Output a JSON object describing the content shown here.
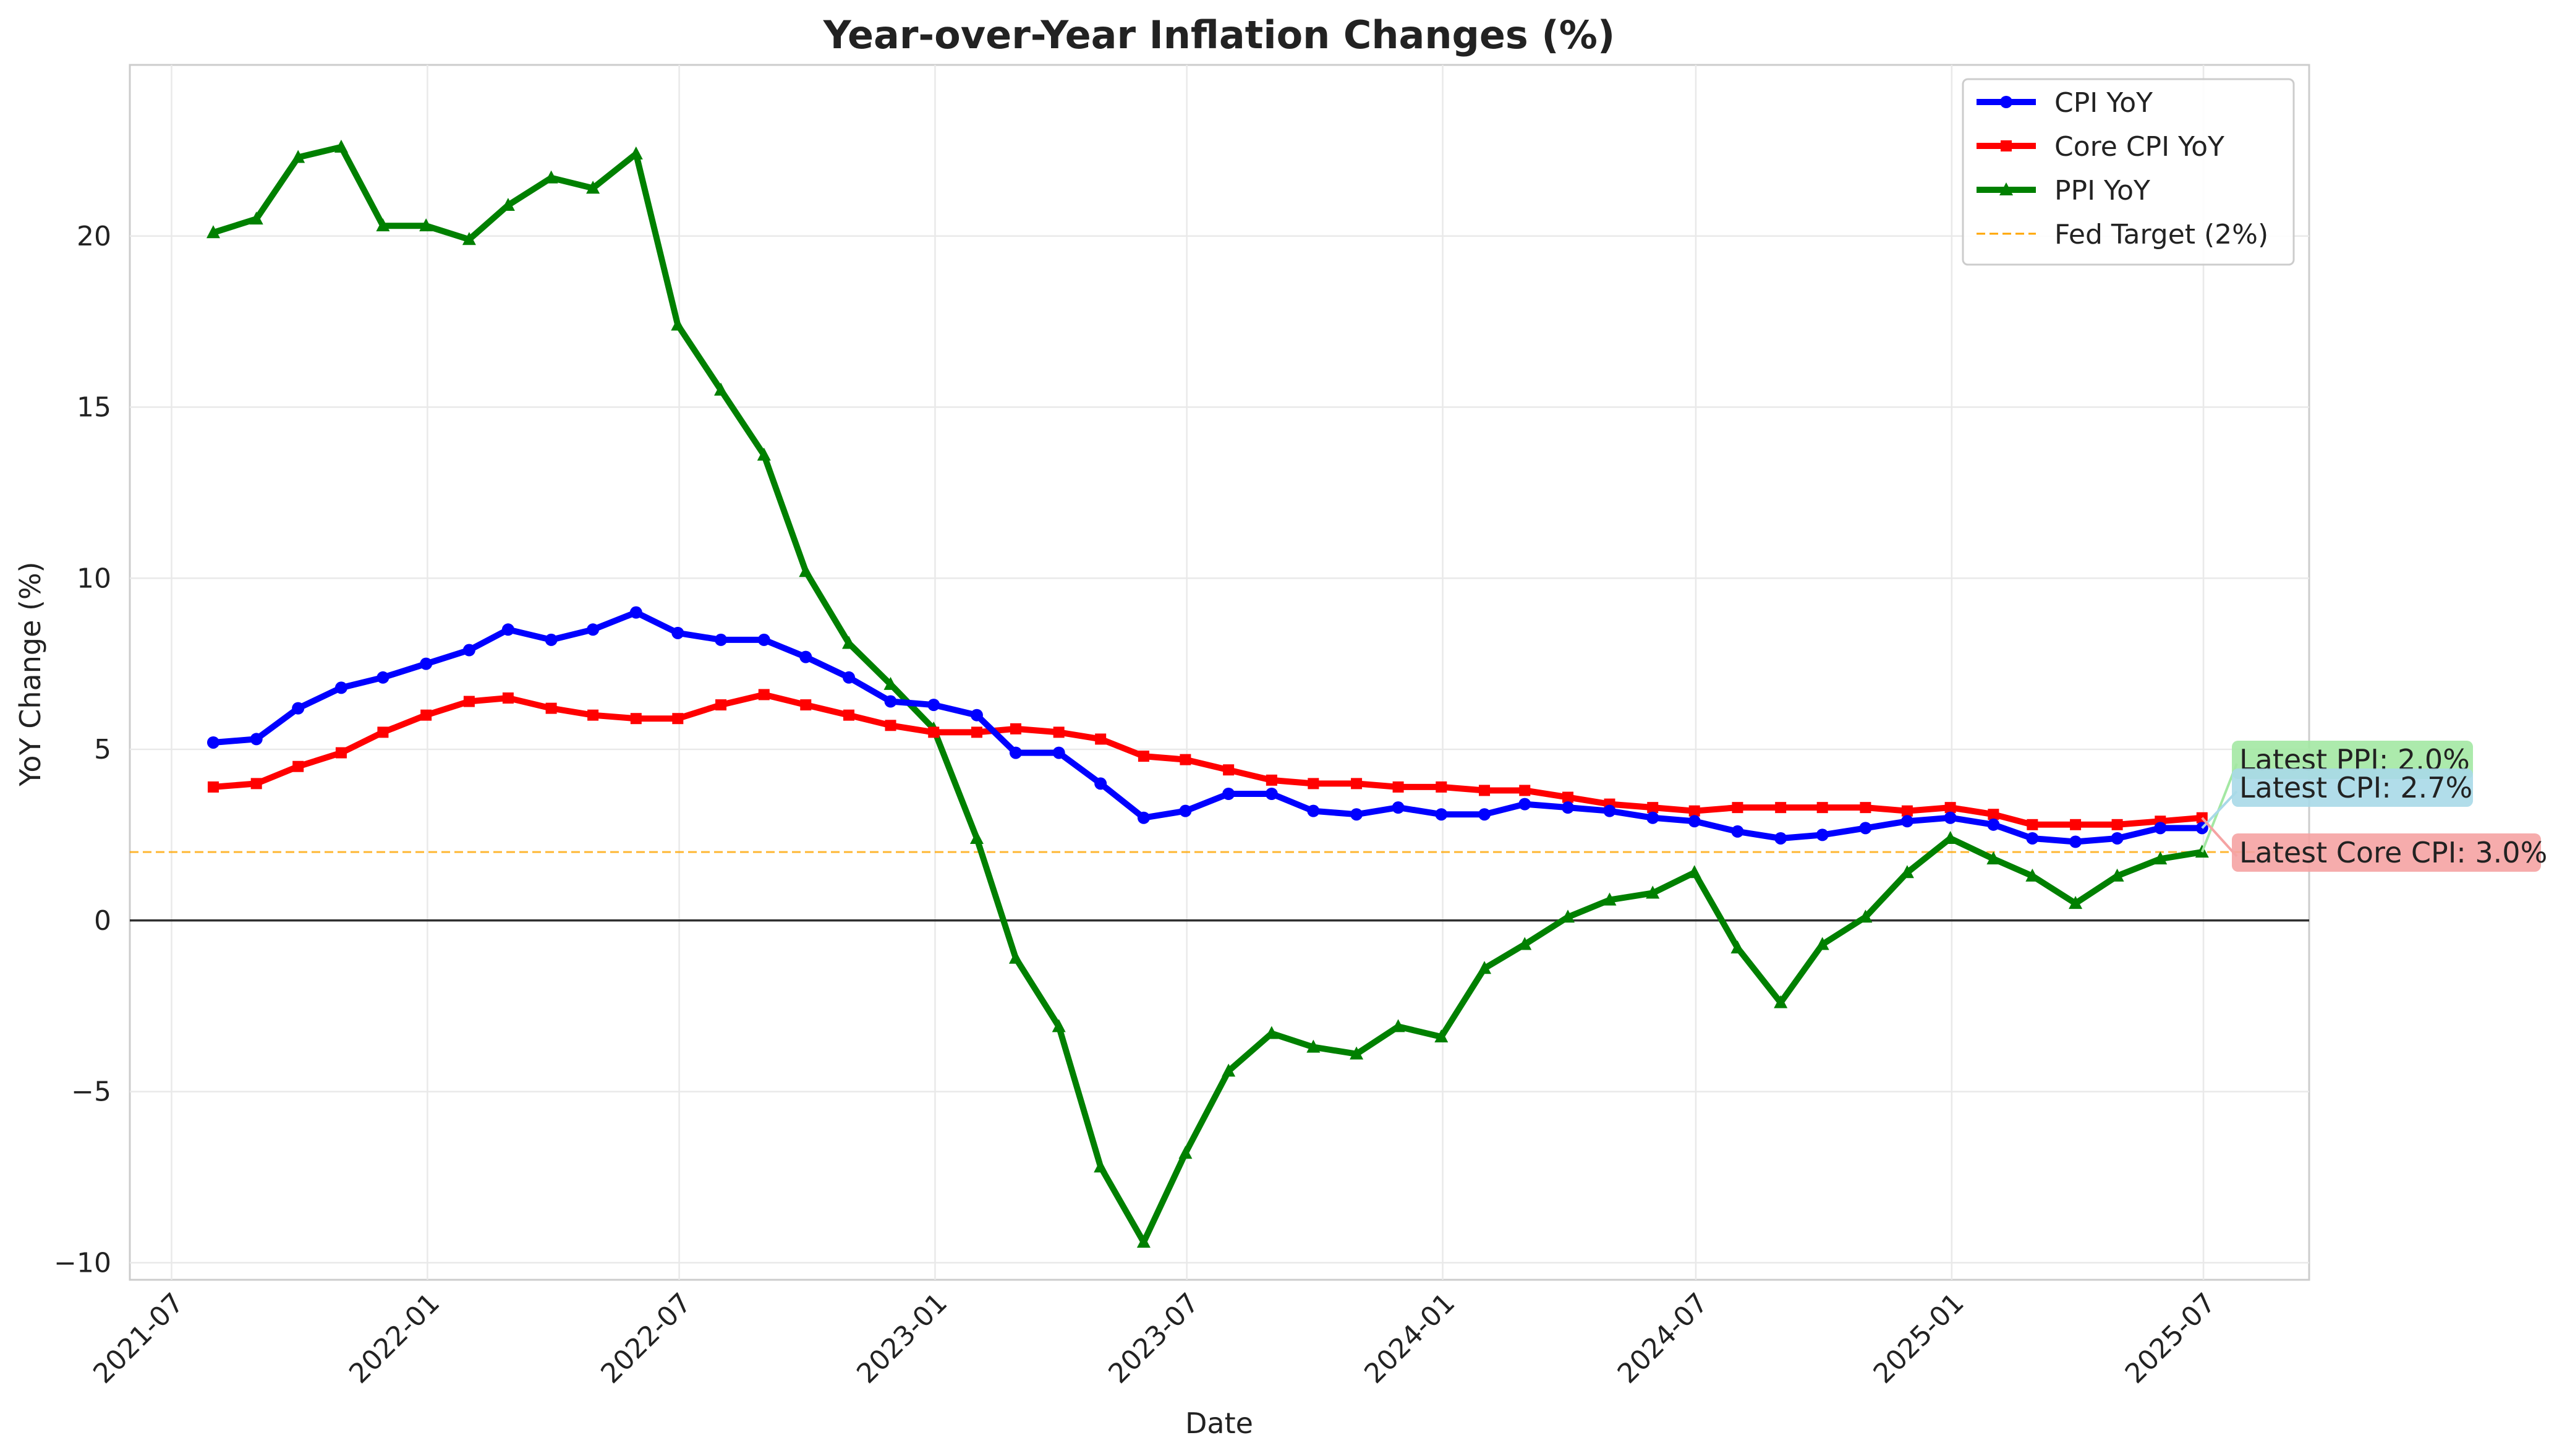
{
  "chart_data": {
    "type": "line",
    "title": "Year-over-Year Inflation Changes (%)",
    "xlabel": "Date",
    "ylabel": "YoY Change (%)",
    "ylim": [
      -10.5,
      25
    ],
    "yticks": [
      -10,
      -5,
      0,
      5,
      10,
      15,
      20
    ],
    "ytick_labels": [
      "−10",
      "−5",
      "0",
      "5",
      "10",
      "15",
      "20"
    ],
    "xlim": [
      "2021-06-01",
      "2025-09-15"
    ],
    "xticks": [
      "2021-07-01",
      "2022-01-01",
      "2022-07-01",
      "2023-01-01",
      "2023-07-01",
      "2024-01-01",
      "2024-07-01",
      "2025-01-01",
      "2025-07-01"
    ],
    "xtick_labels": [
      "2021-07",
      "2022-01",
      "2022-07",
      "2023-01",
      "2023-07",
      "2024-01",
      "2024-07",
      "2025-01",
      "2025-07"
    ],
    "grid": true,
    "legend_position": "top-right",
    "x": [
      "2021-07-31",
      "2021-08-31",
      "2021-09-30",
      "2021-10-31",
      "2021-11-30",
      "2021-12-31",
      "2022-01-31",
      "2022-02-28",
      "2022-03-31",
      "2022-04-30",
      "2022-05-31",
      "2022-06-30",
      "2022-07-31",
      "2022-08-31",
      "2022-09-30",
      "2022-10-31",
      "2022-11-30",
      "2022-12-31",
      "2023-01-31",
      "2023-02-28",
      "2023-03-31",
      "2023-04-30",
      "2023-05-31",
      "2023-06-30",
      "2023-07-31",
      "2023-08-31",
      "2023-09-30",
      "2023-10-31",
      "2023-11-30",
      "2023-12-31",
      "2024-01-31",
      "2024-02-29",
      "2024-03-31",
      "2024-04-30",
      "2024-05-31",
      "2024-06-30",
      "2024-07-31",
      "2024-08-31",
      "2024-09-30",
      "2024-10-31",
      "2024-11-30",
      "2024-12-31",
      "2025-01-31",
      "2025-02-28",
      "2025-03-31",
      "2025-04-30",
      "2025-05-31",
      "2025-06-30"
    ],
    "series": [
      {
        "name": "CPI YoY",
        "color": "#0000ff",
        "marker": "circle",
        "values": [
          5.2,
          5.3,
          6.2,
          6.8,
          7.1,
          7.5,
          7.9,
          8.5,
          8.2,
          8.5,
          9.0,
          8.4,
          8.2,
          8.2,
          7.7,
          7.1,
          6.4,
          6.3,
          6.0,
          4.9,
          4.9,
          4.0,
          3.0,
          3.2,
          3.7,
          3.7,
          3.2,
          3.1,
          3.3,
          3.1,
          3.1,
          3.4,
          3.3,
          3.2,
          3.0,
          2.9,
          2.6,
          2.4,
          2.5,
          2.7,
          2.9,
          3.0,
          2.8,
          2.4,
          2.3,
          2.4,
          2.7,
          2.7
        ]
      },
      {
        "name": "Core CPI YoY",
        "color": "#ff0000",
        "marker": "square",
        "values": [
          3.9,
          4.0,
          4.5,
          4.9,
          5.5,
          6.0,
          6.4,
          6.5,
          6.2,
          6.0,
          5.9,
          5.9,
          6.3,
          6.6,
          6.3,
          6.0,
          5.7,
          5.5,
          5.5,
          5.6,
          5.5,
          5.3,
          4.8,
          4.7,
          4.4,
          4.1,
          4.0,
          4.0,
          3.9,
          3.9,
          3.8,
          3.8,
          3.6,
          3.4,
          3.3,
          3.2,
          3.3,
          3.3,
          3.3,
          3.3,
          3.2,
          3.3,
          3.1,
          2.8,
          2.8,
          2.8,
          2.9,
          3.0
        ]
      },
      {
        "name": "PPI YoY",
        "color": "#008000",
        "marker": "triangle",
        "values": [
          20.1,
          20.5,
          22.3,
          22.6,
          20.3,
          20.3,
          19.9,
          20.9,
          21.7,
          21.4,
          22.4,
          17.4,
          15.5,
          13.6,
          10.2,
          8.1,
          6.9,
          5.6,
          2.4,
          -1.1,
          -3.1,
          -7.2,
          -9.4,
          -6.8,
          -4.4,
          -3.3,
          -3.7,
          -3.9,
          -3.1,
          -3.4,
          -1.4,
          -0.7,
          0.1,
          0.6,
          0.8,
          1.4,
          -0.8,
          -2.4,
          -0.7,
          0.1,
          1.4,
          2.4,
          1.8,
          1.3,
          0.5,
          1.3,
          1.8,
          2.0
        ]
      }
    ],
    "reference_lines": [
      {
        "name": "Fed Target (2%)",
        "value": 2.0,
        "color": "#ffa500",
        "style": "dashed"
      },
      {
        "name": "",
        "value": 0,
        "color": "#000000",
        "style": "solid"
      }
    ],
    "annotations": [
      {
        "text": "Latest PPI: 2.0%",
        "bg": "#a3e8a3"
      },
      {
        "text": "Latest CPI: 2.7%",
        "bg": "#a9d9e8"
      },
      {
        "text": "Latest Core CPI: 3.0%",
        "bg": "#f5a3a3"
      }
    ]
  }
}
